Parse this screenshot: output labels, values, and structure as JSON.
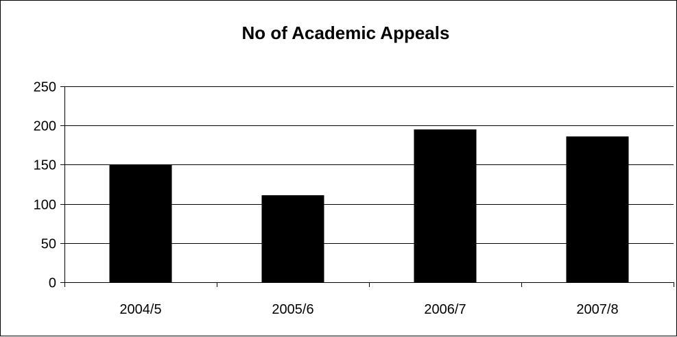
{
  "chart_data": {
    "type": "bar",
    "title": "No of Academic Appeals",
    "xlabel": "",
    "ylabel": "",
    "categories": [
      "2004/5",
      "2005/6",
      "2006/7",
      "2007/8"
    ],
    "values": [
      150,
      111,
      195,
      186
    ],
    "ylim": [
      0,
      250
    ],
    "yticks": [
      0,
      50,
      100,
      150,
      200,
      250
    ],
    "grid": true,
    "legend": "none",
    "colors": {
      "bar": "#000000",
      "gridline": "#000000",
      "background": "#ffffff"
    }
  }
}
